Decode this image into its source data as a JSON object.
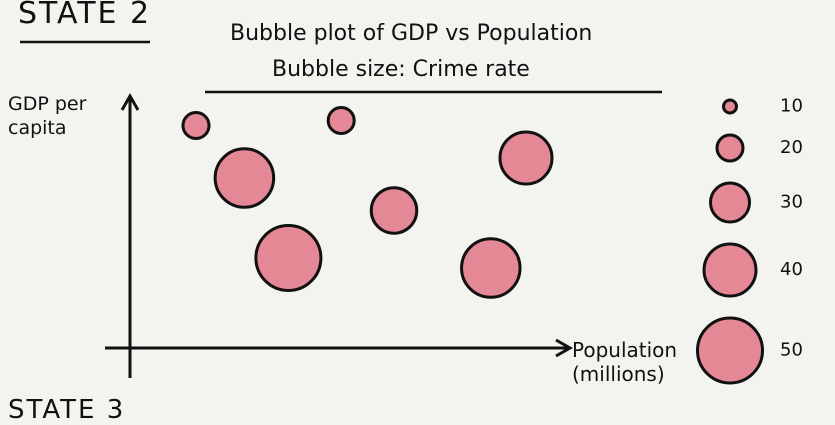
{
  "page": {
    "labels": [
      "STATE 2",
      "STATE 3"
    ]
  },
  "chart_data": {
    "type": "bubble",
    "title": "Bubble plot of GDP vs Population",
    "subtitle": "Bubble size: Crime rate",
    "x_label": "Population (millions)",
    "y_label": "GDP per capita",
    "xlim": [
      0,
      10
    ],
    "ylim": [
      0,
      10
    ],
    "x": [
      1.5,
      4.8,
      2.6,
      6.0,
      3.6,
      9.0,
      8.2
    ],
    "values": [
      8.9,
      9.1,
      6.8,
      5.5,
      3.6,
      7.6,
      3.2
    ],
    "sizes": [
      20,
      20,
      45,
      35,
      50,
      40,
      45
    ],
    "size_legend": [
      10,
      20,
      30,
      40,
      50
    ],
    "color": "#e48896"
  }
}
